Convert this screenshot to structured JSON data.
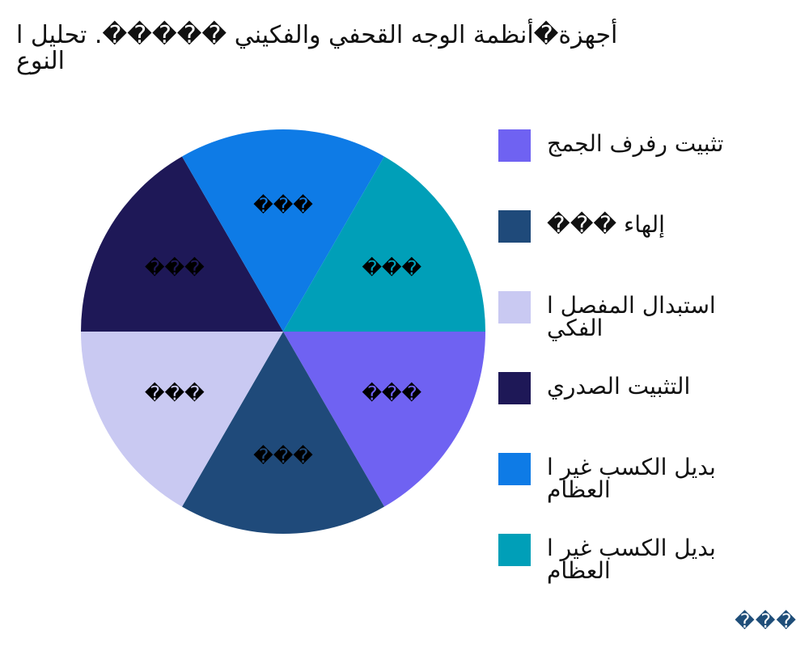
{
  "chart_data": {
    "type": "pie",
    "title_lines": [
      "أجهزة�أنظمة الوجه القحفي والفكيني �����. تحليل ا",
      "النوع"
    ],
    "categories": [
      "تثبيت رفرف الجمج",
      "إلهاء ���",
      "استبدال المفصل ا\nالفكي",
      "التثبيت الصدري",
      "بديل الكسب غير ا\nالعظام",
      "بديل الكسب غير ا\nالعظام"
    ],
    "values": [
      16.67,
      16.67,
      16.67,
      16.67,
      16.67,
      16.67
    ],
    "slice_labels": [
      "���",
      "���",
      "���",
      "���",
      "���",
      "���"
    ],
    "colors": [
      "#6f62f2",
      "#1f4a7a",
      "#c9c9f2",
      "#1e1857",
      "#0e7be6",
      "#009fb8"
    ],
    "legend_placement": "right",
    "start_angle_deg": 0,
    "direction": "clockwise"
  },
  "brand": {
    "text": "���"
  }
}
